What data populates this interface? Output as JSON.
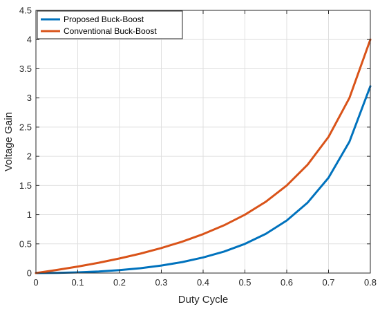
{
  "chart_data": {
    "type": "line",
    "xlabel": "Duty Cycle",
    "ylabel": "Voltage Gain",
    "xlim": [
      0,
      0.8
    ],
    "ylim": [
      0,
      4.5
    ],
    "xticks": [
      "0",
      "0.1",
      "0.2",
      "0.3",
      "0.4",
      "0.5",
      "0.6",
      "0.7",
      "0.8"
    ],
    "yticks": [
      "0",
      "0.5",
      "1",
      "1.5",
      "2",
      "2.5",
      "3",
      "3.5",
      "4",
      "4.5"
    ],
    "grid": true,
    "legend_position": "top-left",
    "x": [
      0,
      0.05,
      0.1,
      0.15,
      0.2,
      0.25,
      0.3,
      0.35,
      0.4,
      0.45,
      0.5,
      0.55,
      0.6,
      0.65,
      0.7,
      0.75,
      0.8
    ],
    "series": [
      {
        "name": "Proposed Buck-Boost",
        "color": "#0072BD",
        "values": [
          0,
          0.003,
          0.012,
          0.026,
          0.05,
          0.083,
          0.129,
          0.188,
          0.267,
          0.368,
          0.5,
          0.672,
          0.9,
          1.207,
          1.633,
          2.25,
          3.2
        ]
      },
      {
        "name": "Conventional Buck-Boost",
        "color": "#D95319",
        "values": [
          0,
          0.053,
          0.111,
          0.176,
          0.25,
          0.333,
          0.429,
          0.538,
          0.667,
          0.818,
          1.0,
          1.222,
          1.5,
          1.857,
          2.333,
          3.0,
          4.0
        ]
      }
    ]
  }
}
